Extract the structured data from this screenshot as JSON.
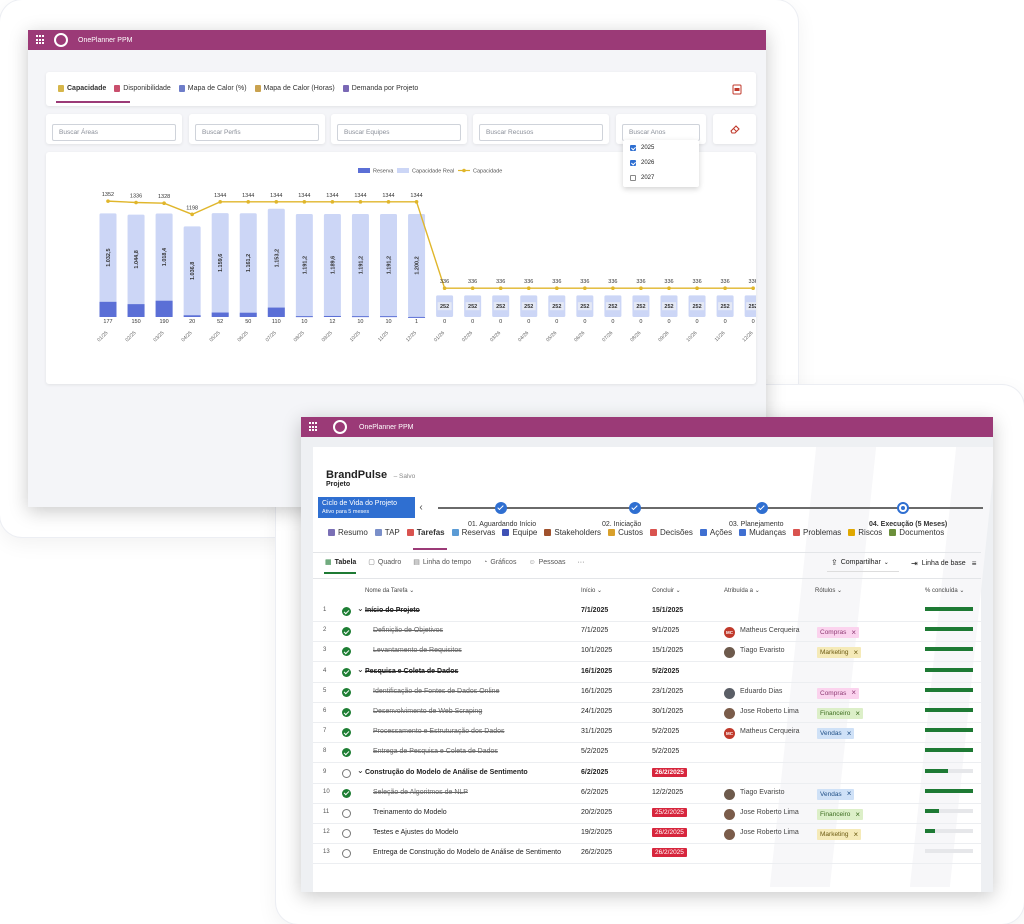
{
  "app_name": "OnePlanner PPM",
  "capacity_window": {
    "tabs": [
      {
        "label": "Capacidade",
        "icon": "battery-icon",
        "color": "#d6b64a"
      },
      {
        "label": "Disponibilidade",
        "icon": "person-icon",
        "color": "#c94f6d"
      },
      {
        "label": "Mapa de Calor (%)",
        "icon": "table-icon",
        "color": "#6e7dc9"
      },
      {
        "label": "Mapa de Calor (Horas)",
        "icon": "hourglass-icon",
        "color": "#c9a24f"
      },
      {
        "label": "Demanda por Projeto",
        "icon": "calendar-icon",
        "color": "#7a68b5"
      }
    ],
    "filters": [
      "Buscar Áreas",
      "Buscar Perfis",
      "Buscar Equipes",
      "Buscar Recusos",
      "Buscar Anos"
    ],
    "year_options": [
      {
        "label": "2025",
        "checked": true
      },
      {
        "label": "2026",
        "checked": true
      },
      {
        "label": "2027",
        "checked": false
      }
    ]
  },
  "chart_data": {
    "type": "bar",
    "legend": [
      "Reserva",
      "Capacidade Real",
      "Capacidade"
    ],
    "legend_position": "top-center",
    "colors": {
      "reserva": "#5b6fd6",
      "capacidade_real": "#ccd6f6",
      "capacidade": "#e0b62b"
    },
    "categories": [
      "01/25",
      "02/25",
      "03/25",
      "04/25",
      "05/25",
      "06/25",
      "07/25",
      "08/25",
      "09/25",
      "10/25",
      "11/25",
      "12/25",
      "01/26",
      "02/26",
      "03/26",
      "04/26",
      "05/26",
      "06/26",
      "07/26",
      "08/26",
      "09/26",
      "10/26",
      "11/26",
      "12/26"
    ],
    "series": [
      {
        "name": "Reserva",
        "values": [
          177,
          150,
          190,
          20,
          52,
          50,
          110,
          10,
          12,
          10,
          10,
          1,
          0,
          0,
          0,
          0,
          0,
          0,
          0,
          0,
          0,
          0,
          0,
          0
        ]
      },
      {
        "name": "Capacidade Real",
        "values": [
          1032.5,
          1044.8,
          1018.4,
          1036.8,
          1159.6,
          1161.2,
          1153.2,
          1191.2,
          1189.6,
          1191.2,
          1191.2,
          1200.2,
          252,
          252,
          252,
          252,
          252,
          252,
          252,
          252,
          252,
          252,
          252,
          252
        ]
      },
      {
        "name": "Capacidade",
        "values": [
          1352,
          1336,
          1328,
          1198,
          1344,
          1344,
          1344,
          1344,
          1344,
          1344,
          1344,
          1344,
          336,
          336,
          336,
          336,
          336,
          336,
          336,
          336,
          336,
          336,
          336,
          336
        ]
      }
    ],
    "real_labels": [
      "1.032,5",
      "1.044,8",
      "1.018,4",
      "1.036,8",
      "1.159,6",
      "1.161,2",
      "1.153,2",
      "1.191,2",
      "1.189,6",
      "1.191,2",
      "1.191,2",
      "1.200,2",
      "252",
      "252",
      "252",
      "252",
      "252",
      "252",
      "252",
      "252",
      "252",
      "252",
      "252",
      "252"
    ]
  },
  "project_window": {
    "project_name": "BrandPulse",
    "saved_status": "– Salvo",
    "project_type": "Projeto",
    "lifecycle": {
      "title": "Ciclo de Vida do Projeto",
      "subtitle": "Ativo para 5 meses"
    },
    "stages": [
      "01. Aguardando Início",
      "02. Iniciação",
      "03. Planejamento",
      "04. Execução (5 Meses)"
    ],
    "nav_tabs": [
      {
        "label": "Resumo",
        "icon": "summary-icon",
        "color": "#7a6fb5"
      },
      {
        "label": "TAP",
        "icon": "document-icon",
        "color": "#7a8fc9"
      },
      {
        "label": "Tarefas",
        "icon": "tasks-icon",
        "color": "#d9534f"
      },
      {
        "label": "Reservas",
        "icon": "calendar-icon",
        "color": "#5b9bd5"
      },
      {
        "label": "Equipe",
        "icon": "team-icon",
        "color": "#3f51b5"
      },
      {
        "label": "Stakeholders",
        "icon": "stakeholder-icon",
        "color": "#a0522d"
      },
      {
        "label": "Custos",
        "icon": "money-bag-icon",
        "color": "#d9a02b"
      },
      {
        "label": "Decisões",
        "icon": "flag-icon",
        "color": "#d9534f"
      },
      {
        "label": "Ações",
        "icon": "check-icon",
        "color": "#3f6fd1"
      },
      {
        "label": "Mudanças",
        "icon": "diamond-icon",
        "color": "#3f6fd1"
      },
      {
        "label": "Problemas",
        "icon": "alert-icon",
        "color": "#d9534f"
      },
      {
        "label": "Riscos",
        "icon": "warning-icon",
        "color": "#e0a800"
      },
      {
        "label": "Documentos",
        "icon": "folder-icon",
        "color": "#6b8f3a"
      }
    ],
    "sub_tabs": [
      "Tabela",
      "Quadro",
      "Linha do tempo",
      "Gráficos",
      "Pessoas",
      "···"
    ],
    "share_label": "Compartilhar",
    "baseline_label": "Linha de base",
    "columns": [
      "Nome da Tarefa",
      "Início",
      "Concluir",
      "Atribuída a",
      "Rótulos",
      "% concluída"
    ],
    "rows": [
      {
        "n": "1",
        "done": true,
        "group": true,
        "name": "Início do Projeto",
        "start": "7/1/2025",
        "end": "15/1/2025",
        "late": false,
        "person": "",
        "initials": "",
        "avatar_color": "",
        "tag": "",
        "tag_bg": "",
        "tag_fg": "",
        "pct": 1.0
      },
      {
        "n": "2",
        "done": true,
        "group": false,
        "name": "Definição de Objetivos",
        "start": "7/1/2025",
        "end": "9/1/2025",
        "late": false,
        "person": "Matheus Cerqueira",
        "initials": "MC",
        "avatar_color": "#c0392b",
        "tag": "Compras",
        "tag_bg": "#fbd3ee",
        "tag_fg": "#8e3b74",
        "pct": 1.0
      },
      {
        "n": "3",
        "done": true,
        "group": false,
        "name": "Levantamento de Requisitos",
        "start": "10/1/2025",
        "end": "15/1/2025",
        "late": false,
        "person": "Tiago Evaristo",
        "initials": "",
        "avatar_color": "#6d5a4c",
        "tag": "Marketing",
        "tag_bg": "#f5eab8",
        "tag_fg": "#6b5a12",
        "pct": 1.0
      },
      {
        "n": "4",
        "done": true,
        "group": true,
        "name": "Pesquisa e Coleta de Dados",
        "start": "16/1/2025",
        "end": "5/2/2025",
        "late": false,
        "person": "",
        "initials": "",
        "avatar_color": "",
        "tag": "",
        "tag_bg": "",
        "tag_fg": "",
        "pct": 1.0
      },
      {
        "n": "5",
        "done": true,
        "group": false,
        "name": "Identificação de Fontes de Dados Online",
        "start": "16/1/2025",
        "end": "23/1/2025",
        "late": false,
        "person": "Eduardo Dias",
        "initials": "",
        "avatar_color": "#5a5e66",
        "tag": "Compras",
        "tag_bg": "#fbd3ee",
        "tag_fg": "#8e3b74",
        "pct": 1.0
      },
      {
        "n": "6",
        "done": true,
        "group": false,
        "name": "Desenvolvimento de Web Scraping",
        "start": "24/1/2025",
        "end": "30/1/2025",
        "late": false,
        "person": "Jose Roberto Lima",
        "initials": "",
        "avatar_color": "#7a5c4a",
        "tag": "Financeiro",
        "tag_bg": "#dcefc8",
        "tag_fg": "#3c6b1f",
        "pct": 1.0
      },
      {
        "n": "7",
        "done": true,
        "group": false,
        "name": "Processamento e Estruturação dos Dados",
        "start": "31/1/2025",
        "end": "5/2/2025",
        "late": false,
        "person": "Matheus Cerqueira",
        "initials": "MC",
        "avatar_color": "#c0392b",
        "tag": "Vendas",
        "tag_bg": "#cfe1f7",
        "tag_fg": "#1f4f86",
        "pct": 1.0
      },
      {
        "n": "8",
        "done": true,
        "group": false,
        "name": "Entrega de Pesquisa e Coleta de Dados",
        "start": "5/2/2025",
        "end": "5/2/2025",
        "late": false,
        "person": "",
        "initials": "",
        "avatar_color": "",
        "tag": "",
        "tag_bg": "",
        "tag_fg": "",
        "pct": 1.0
      },
      {
        "n": "9",
        "done": false,
        "group": true,
        "name": "Construção do Modelo de Análise de Sentimento",
        "start": "6/2/2025",
        "end": "26/2/2025",
        "late": true,
        "person": "",
        "initials": "",
        "avatar_color": "",
        "tag": "",
        "tag_bg": "",
        "tag_fg": "",
        "pct": 0.48
      },
      {
        "n": "10",
        "done": true,
        "group": false,
        "name": "Seleção de Algoritmos de NLP",
        "start": "6/2/2025",
        "end": "12/2/2025",
        "late": false,
        "person": "Tiago Evaristo",
        "initials": "",
        "avatar_color": "#6d5a4c",
        "tag": "Vendas",
        "tag_bg": "#cfe1f7",
        "tag_fg": "#1f4f86",
        "pct": 1.0
      },
      {
        "n": "11",
        "done": false,
        "group": false,
        "name": "Treinamento do Modelo",
        "start": "20/2/2025",
        "end": "25/2/2025",
        "late": true,
        "person": "Jose Roberto Lima",
        "initials": "",
        "avatar_color": "#7a5c4a",
        "tag": "Financeiro",
        "tag_bg": "#dcefc8",
        "tag_fg": "#3c6b1f",
        "pct": 0.3
      },
      {
        "n": "12",
        "done": false,
        "group": false,
        "name": "Testes e Ajustes do Modelo",
        "start": "19/2/2025",
        "end": "26/2/2025",
        "late": true,
        "person": "Jose Roberto Lima",
        "initials": "",
        "avatar_color": "#7a5c4a",
        "tag": "Marketing",
        "tag_bg": "#f5eab8",
        "tag_fg": "#6b5a12",
        "pct": 0.2
      },
      {
        "n": "13",
        "done": false,
        "group": false,
        "name": "Entrega de Construção do Modelo de Análise de Sentimento",
        "start": "26/2/2025",
        "end": "26/2/2025",
        "late": true,
        "person": "",
        "initials": "",
        "avatar_color": "",
        "tag": "",
        "tag_bg": "",
        "tag_fg": "",
        "pct": 0.0
      }
    ]
  }
}
